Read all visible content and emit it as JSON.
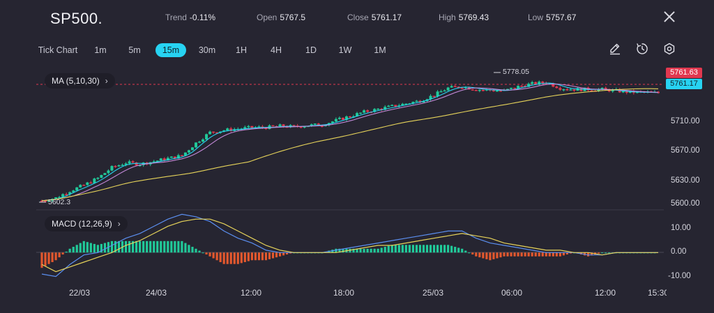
{
  "header": {
    "symbol": "SP500.",
    "trend_label": "Trend",
    "trend_value": "-0.11%",
    "open_label": "Open",
    "open_value": "5767.5",
    "close_label": "Close",
    "close_value": "5761.17",
    "high_label": "High",
    "high_value": "5769.43",
    "low_label": "Low",
    "low_value": "5757.67"
  },
  "timeframes": [
    "Tick Chart",
    "1m",
    "5m",
    "15m",
    "30m",
    "1H",
    "4H",
    "1D",
    "1W",
    "1M"
  ],
  "active_timeframe": "15m",
  "tools": [
    "pencil-icon",
    "timer-icon",
    "settings-icon"
  ],
  "indicators": {
    "ma_label": "MA (5,10,30)",
    "macd_label": "MACD (12,26,9)",
    "arrow": "›"
  },
  "price_axis": [
    "5710.00",
    "5670.00",
    "5630.00",
    "5600.00"
  ],
  "macd_axis": [
    "10.00",
    "0.00",
    "-10.00"
  ],
  "time_axis": [
    "22/03",
    "24/03",
    "12:00",
    "18:00",
    "25/03",
    "06:00",
    "12:00",
    "15:30"
  ],
  "price_tags": {
    "ask": "5761.63",
    "bid": "5761.17"
  },
  "markers": {
    "high": "5778.05",
    "low": "5602.3"
  },
  "colors": {
    "background": "#262531",
    "up": "#21c999",
    "down": "#e1384f",
    "accent": "#27d3f2",
    "ma_short": "#27d3f2",
    "ma_mid": "#c489d9",
    "ma_long": "#e6d35a",
    "macd_line": "#5b8ff0",
    "signal_line": "#e6d35a",
    "hist_neg": "#e2582e"
  },
  "chart_data": [
    {
      "type": "candlestick",
      "title": "SP500.",
      "y_unit": "price",
      "ylim": [
        5598,
        5790
      ],
      "moving_averages": [
        5,
        10,
        30
      ],
      "close_path": [
        5608,
        5612,
        5622,
        5630,
        5640,
        5655,
        5662,
        5660,
        5664,
        5668,
        5672,
        5690,
        5705,
        5708,
        5710,
        5712,
        5712,
        5714,
        5713,
        5715,
        5716,
        5722,
        5728,
        5734,
        5738,
        5742,
        5746,
        5750,
        5758,
        5768,
        5770,
        5766,
        5765,
        5764,
        5770,
        5774,
        5776,
        5768,
        5766,
        5766,
        5766,
        5764,
        5762,
        5762,
        5761
      ],
      "high_marker": 5778.05,
      "low_marker": 5602.3,
      "last_price": 5761.17
    },
    {
      "type": "line",
      "title": "MACD (12,26,9)",
      "ylim": [
        -11,
        17
      ],
      "series": [
        {
          "name": "MACD",
          "values": [
            -9,
            -10,
            -5,
            -1,
            0,
            3,
            6,
            8,
            11,
            14,
            16,
            15,
            13,
            9,
            6,
            4,
            1,
            0,
            0,
            0,
            0,
            1,
            2,
            3,
            4,
            5,
            6,
            7,
            8,
            9,
            9,
            6,
            4,
            3,
            2,
            1,
            0,
            0,
            0,
            -1,
            -1,
            0,
            0,
            0,
            0
          ]
        },
        {
          "name": "Signal",
          "values": [
            -5,
            -8,
            -6,
            -4,
            -2,
            0,
            3,
            5,
            8,
            11,
            13,
            14,
            14,
            12,
            9,
            6,
            3,
            1,
            0,
            0,
            0,
            0,
            1,
            2,
            3,
            3,
            4,
            5,
            6,
            7,
            8,
            7,
            6,
            4,
            3,
            2,
            1,
            1,
            0,
            0,
            -1,
            0,
            0,
            0,
            0
          ]
        }
      ]
    }
  ]
}
